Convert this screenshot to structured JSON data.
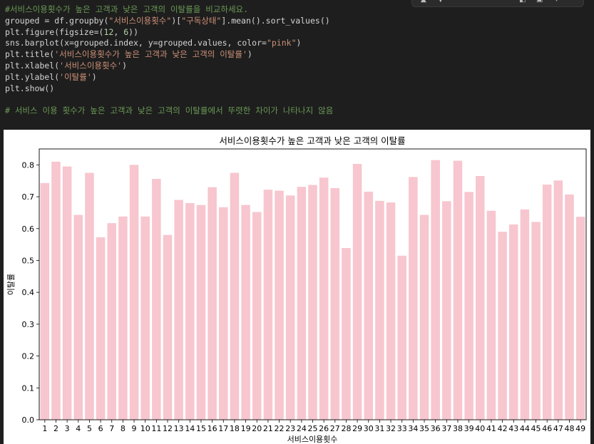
{
  "code_cell": {
    "lines": [
      [
        {
          "t": "#서비스이용횟수가 높은 고객과 낮은 고객의 이탈률을 비교하세요.",
          "c": "c-comment"
        }
      ],
      [
        {
          "t": "grouped = df.groupby(",
          "c": "c-plain"
        },
        {
          "t": "\"서비스이용횟수\"",
          "c": "c-str"
        },
        {
          "t": ")[",
          "c": "c-plain"
        },
        {
          "t": "\"구독상태\"",
          "c": "c-str"
        },
        {
          "t": "].mean().sort_values()",
          "c": "c-plain"
        }
      ],
      [
        {
          "t": "plt.figure(figsize=(",
          "c": "c-plain"
        },
        {
          "t": "12",
          "c": "c-num"
        },
        {
          "t": ", ",
          "c": "c-plain"
        },
        {
          "t": "6",
          "c": "c-num"
        },
        {
          "t": "))",
          "c": "c-plain"
        }
      ],
      [
        {
          "t": "sns.barplot(x=grouped.index, y=grouped.values, color=",
          "c": "c-plain"
        },
        {
          "t": "\"pink\"",
          "c": "c-str"
        },
        {
          "t": ")",
          "c": "c-plain"
        }
      ],
      [
        {
          "t": "plt.title(",
          "c": "c-plain"
        },
        {
          "t": "'서비스이용횟수가 높은 고객과 낮은 고객의 이탈률'",
          "c": "c-str"
        },
        {
          "t": ")",
          "c": "c-plain"
        }
      ],
      [
        {
          "t": "plt.xlabel(",
          "c": "c-plain"
        },
        {
          "t": "'서비스이용횟수'",
          "c": "c-str"
        },
        {
          "t": ")",
          "c": "c-plain"
        }
      ],
      [
        {
          "t": "plt.ylabel(",
          "c": "c-plain"
        },
        {
          "t": "'이탈률'",
          "c": "c-str"
        },
        {
          "t": ")",
          "c": "c-plain"
        }
      ],
      [
        {
          "t": "plt.show()",
          "c": "c-plain"
        }
      ],
      [
        {
          "t": "",
          "c": "c-plain"
        }
      ],
      [
        {
          "t": "# 서비스 이용 횟수가 높은 고객과 낮은 고객의 이탈률에서 뚜렷한 차이가 나타나지 않음",
          "c": "c-comment"
        }
      ]
    ]
  },
  "colors": {
    "bar": "#f7c6cf",
    "editor_bg": "#1e1e1e",
    "output_bg": "#ffffff"
  },
  "toolbar_icons": [
    "arrow-up-icon",
    "arrow-down-icon",
    "save-icon",
    "delete-icon",
    "more-icon"
  ],
  "chart_data": {
    "type": "bar",
    "title": "서비스이용횟수가 높은 고객과 낮은 고객의 이탈률",
    "xlabel": "서비스이용횟수",
    "ylabel": "이탈률",
    "ylim": [
      0,
      0.85
    ],
    "yticks": [
      "0.0",
      "0.1",
      "0.2",
      "0.3",
      "0.4",
      "0.5",
      "0.6",
      "0.7",
      "0.8"
    ],
    "categories": [
      "1",
      "2",
      "3",
      "4",
      "5",
      "6",
      "7",
      "8",
      "9",
      "10",
      "11",
      "12",
      "13",
      "14",
      "15",
      "16",
      "17",
      "18",
      "19",
      "20",
      "21",
      "22",
      "23",
      "24",
      "25",
      "26",
      "27",
      "28",
      "29",
      "30",
      "31",
      "32",
      "33",
      "34",
      "35",
      "36",
      "37",
      "38",
      "39",
      "40",
      "41",
      "42",
      "43",
      "44",
      "45",
      "46",
      "47",
      "48",
      "49"
    ],
    "values": [
      0.743,
      0.81,
      0.795,
      0.643,
      0.775,
      0.573,
      0.617,
      0.638,
      0.8,
      0.638,
      0.756,
      0.58,
      0.69,
      0.68,
      0.674,
      0.73,
      0.667,
      0.775,
      0.674,
      0.652,
      0.722,
      0.719,
      0.704,
      0.731,
      0.737,
      0.76,
      0.727,
      0.539,
      0.803,
      0.716,
      0.687,
      0.682,
      0.515,
      0.762,
      0.643,
      0.815,
      0.686,
      0.813,
      0.715,
      0.765,
      0.656,
      0.59,
      0.613,
      0.66,
      0.621,
      0.738,
      0.751,
      0.707,
      0.637
    ],
    "grid": false
  }
}
